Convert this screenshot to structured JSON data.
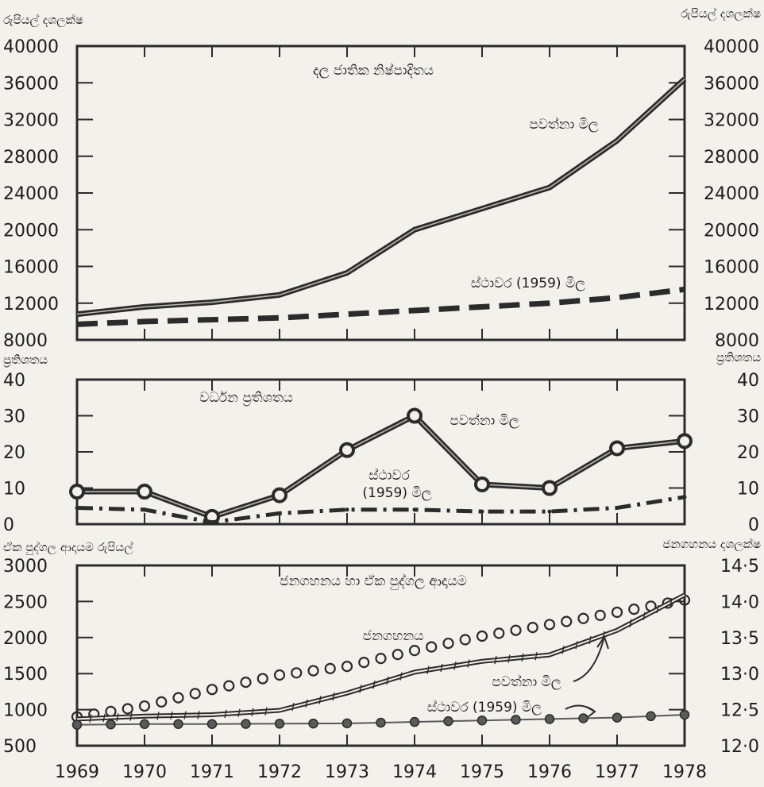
{
  "chart_data": [
    {
      "type": "line",
      "title": "දල ජාතික නිෂ්පාදිතය",
      "ylabel_left": "රුපියල් දශලක්ෂ",
      "ylabel_right": "රුපියල් දශලක්ෂ",
      "x": [
        1969,
        1970,
        1971,
        1972,
        1973,
        1974,
        1975,
        1976,
        1977,
        1978
      ],
      "ylim": [
        8000,
        40000
      ],
      "yticks": [
        "8000",
        "12000",
        "16000",
        "20000",
        "24000",
        "28000",
        "32000",
        "36000",
        "40000"
      ],
      "yticks_right": [
        "8000",
        "12000",
        "16000",
        "20000",
        "24000",
        "28000",
        "32000",
        "36000",
        "40000"
      ],
      "grid": false,
      "series": [
        {
          "name": "පවත්නා මිල",
          "values": [
            10800,
            11600,
            12100,
            12900,
            15300,
            20000,
            22300,
            24600,
            29700,
            36400
          ]
        },
        {
          "name": "ස්ථාවර (1959) මිල",
          "values": [
            9700,
            10000,
            10200,
            10400,
            10800,
            11200,
            11600,
            12000,
            12600,
            13500
          ]
        }
      ]
    },
    {
      "type": "line",
      "title": "වර්ධන ප්‍රතිශතය",
      "ylabel_left": "ප්‍රතිශතය",
      "ylabel_right": "ප්‍රතිශතය",
      "x": [
        1969,
        1970,
        1971,
        1972,
        1973,
        1974,
        1975,
        1976,
        1977,
        1978
      ],
      "ylim": [
        0,
        40
      ],
      "yticks": [
        "0",
        "10",
        "20",
        "30",
        "40"
      ],
      "yticks_right": [
        "0",
        "10",
        "20",
        "30",
        "40"
      ],
      "grid": false,
      "series": [
        {
          "name": "පවත්නා මිල",
          "values": [
            9,
            9,
            2,
            8,
            20.5,
            30,
            11,
            10,
            21,
            23
          ]
        },
        {
          "name": "ස්ථාවර (1959) මිල",
          "values": [
            4.5,
            4,
            0.5,
            3,
            4,
            4,
            3.5,
            3.5,
            4.5,
            7.5
          ]
        }
      ]
    },
    {
      "type": "line",
      "title": "ජනගහනය හා ඒක පුද්ගල ආදායම",
      "ylabel_left": "ඒක පුද්ගල ආදායම රුපියල්",
      "ylabel_right": "ජනගහනය දශලක්ෂ",
      "x": [
        1969,
        1970,
        1971,
        1972,
        1973,
        1974,
        1975,
        1976,
        1977,
        1978
      ],
      "ylim": [
        500,
        3000
      ],
      "yticks": [
        "500",
        "1000",
        "1500",
        "2000",
        "2500",
        "3000"
      ],
      "ylim_right": [
        12.0,
        14.5
      ],
      "yticks_right": [
        "12·0",
        "12·5",
        "13·0",
        "13·5",
        "14·0",
        "14·5"
      ],
      "grid": false,
      "series": [
        {
          "name": "ජනගහනය",
          "axis": "right",
          "values": [
            12.4,
            12.55,
            12.78,
            12.98,
            13.1,
            13.32,
            13.52,
            13.68,
            13.85,
            14.02
          ]
        },
        {
          "name": "පවත්නා මිල",
          "axis": "left",
          "values": [
            870,
            910,
            930,
            990,
            1230,
            1520,
            1670,
            1760,
            2100,
            2590
          ]
        },
        {
          "name": "ස්ථාවර (1959) මිල",
          "axis": "left",
          "values": [
            790,
            800,
            800,
            805,
            810,
            830,
            850,
            870,
            890,
            930
          ]
        }
      ],
      "annotations": [
        "ජනගහනය",
        "පවත්නා මිල",
        "ස්ථාවර (1959) මිල"
      ]
    }
  ],
  "xticks": [
    "1969",
    "1970",
    "1971",
    "1972",
    "1973",
    "1974",
    "1975",
    "1976",
    "1977",
    "1978"
  ],
  "annotations": {
    "p1_current": "පවත්නා මිල",
    "p1_constant": "ස්ථාවර (1959) මිල",
    "p2_current": "පවත්නා මිල",
    "p2_constant_1": "ස්ථාවර",
    "p2_constant_2": "(1959) මිල",
    "p3_population": "ජනගහනය",
    "p3_current": "පවත්නා මිල",
    "p3_constant": "ස්ථාවර (1959) මිල"
  },
  "colors": {
    "ink": "#2b2b2b",
    "paper": "#f3f1ec",
    "line_gray": "#5a5a5a"
  }
}
